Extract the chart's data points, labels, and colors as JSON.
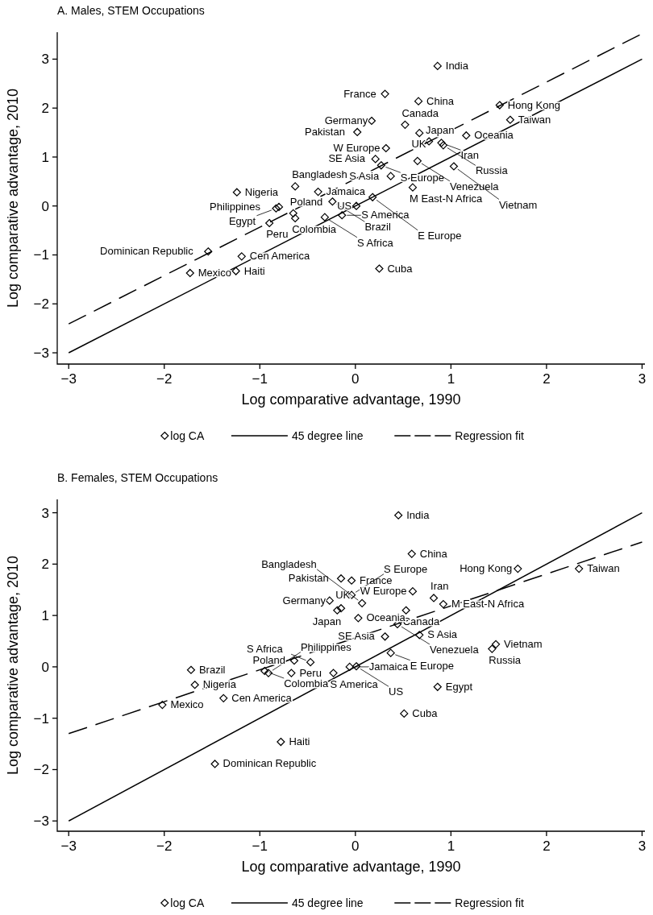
{
  "chart_data": [
    {
      "type": "scatter",
      "title": "A. Males, STEM Occupations",
      "xlabel": "Log comparative advantage, 1990",
      "ylabel": "Log comparative advantage, 2010",
      "xlim": [
        -3.12,
        3.03
      ],
      "ylim": [
        -3.23,
        3.55
      ],
      "xticks": [
        -3,
        -2,
        -1,
        0,
        1,
        2,
        3
      ],
      "yticks": [
        -3,
        -2,
        -1,
        0,
        1,
        2,
        3
      ],
      "legend": "bottom",
      "series": [
        {
          "name": "log CA",
          "type": "scatter",
          "marker": "diamond",
          "color": "#000000",
          "x": [
            -1.24,
            -0.63,
            -0.39,
            -0.8,
            -0.83,
            -0.65,
            -0.63,
            -0.9,
            -0.24,
            -0.32,
            -0.14,
            -1.54,
            -1.19,
            -1.25,
            -1.73,
            0.86,
            0.31,
            0.66,
            1.51,
            1.62,
            0.17,
            0.52,
            0.02,
            0.67,
            1.16,
            0.77,
            0.9,
            0.92,
            0.32,
            0.21,
            0.27,
            0.65,
            1.03,
            0.37,
            0.6,
            0.18,
            0.01,
            0.25
          ],
          "values": [
            0.28,
            0.4,
            0.29,
            -0.02,
            -0.05,
            -0.15,
            -0.25,
            -0.35,
            0.09,
            -0.23,
            -0.19,
            -0.93,
            -1.03,
            -1.33,
            -1.37,
            2.86,
            2.29,
            2.14,
            2.06,
            1.76,
            1.74,
            1.66,
            1.51,
            1.49,
            1.44,
            1.32,
            1.29,
            1.24,
            1.18,
            0.96,
            0.83,
            0.92,
            0.81,
            0.61,
            0.38,
            0.18,
            0.0,
            -1.28
          ]
        },
        {
          "name": "45 degree line",
          "type": "line",
          "line_style": "solid",
          "color": "#000000",
          "x": [
            -3,
            3
          ],
          "values": [
            -3,
            3
          ]
        },
        {
          "name": "Regression fit",
          "type": "line",
          "line_style": "dashed",
          "color": "#000000",
          "x": [
            -3,
            3
          ],
          "values": [
            -2.41,
            3.52
          ]
        }
      ],
      "annotations": [
        {
          "text": "Nigeria",
          "x": -1.24,
          "y": 0.28
        },
        {
          "text": "Bangladesh",
          "x": -0.63,
          "y": 0.4
        },
        {
          "text": "Jamaica",
          "x": -0.39,
          "y": 0.29
        },
        {
          "text": "Philippines",
          "x": -0.8,
          "y": -0.02
        },
        {
          "text": "Egypt",
          "x": -0.83,
          "y": -0.05
        },
        {
          "text": "Poland",
          "x": -0.65,
          "y": -0.15
        },
        {
          "text": "Colombia",
          "x": -0.63,
          "y": -0.25
        },
        {
          "text": "Peru",
          "x": -0.9,
          "y": -0.35
        },
        {
          "text": "Brazil",
          "x": -0.24,
          "y": 0.09
        },
        {
          "text": "S Africa",
          "x": -0.32,
          "y": -0.23
        },
        {
          "text": "S America",
          "x": -0.14,
          "y": -0.19
        },
        {
          "text": "Dominican Republic",
          "x": -1.54,
          "y": -0.93
        },
        {
          "text": "Cen America",
          "x": -1.19,
          "y": -1.03
        },
        {
          "text": "Haiti",
          "x": -1.25,
          "y": -1.33
        },
        {
          "text": "Mexico",
          "x": -1.73,
          "y": -1.37
        },
        {
          "text": "India",
          "x": 0.86,
          "y": 2.86
        },
        {
          "text": "France",
          "x": 0.31,
          "y": 2.29
        },
        {
          "text": "China",
          "x": 0.66,
          "y": 2.14
        },
        {
          "text": "Hong Kong",
          "x": 1.51,
          "y": 2.06
        },
        {
          "text": "Taiwan",
          "x": 1.62,
          "y": 1.76
        },
        {
          "text": "Germany",
          "x": 0.17,
          "y": 1.74
        },
        {
          "text": "Canada",
          "x": 0.52,
          "y": 1.66
        },
        {
          "text": "Pakistan",
          "x": 0.02,
          "y": 1.51
        },
        {
          "text": "UK",
          "x": 0.67,
          "y": 1.49
        },
        {
          "text": "Oceania",
          "x": 1.16,
          "y": 1.44
        },
        {
          "text": "Japan",
          "x": 0.77,
          "y": 1.32
        },
        {
          "text": "Iran",
          "x": 0.9,
          "y": 1.29
        },
        {
          "text": "Russia",
          "x": 0.92,
          "y": 1.24
        },
        {
          "text": "W Europe",
          "x": 0.32,
          "y": 1.18
        },
        {
          "text": "SE Asia",
          "x": 0.21,
          "y": 0.96
        },
        {
          "text": "S Europe",
          "x": 0.27,
          "y": 0.83
        },
        {
          "text": "Venezuela",
          "x": 0.65,
          "y": 0.92
        },
        {
          "text": "Vietnam",
          "x": 1.03,
          "y": 0.81
        },
        {
          "text": "S Asia",
          "x": 0.37,
          "y": 0.61
        },
        {
          "text": "M East-N Africa",
          "x": 0.6,
          "y": 0.38
        },
        {
          "text": "E Europe",
          "x": 0.18,
          "y": 0.18
        },
        {
          "text": "US",
          "x": 0.01,
          "y": 0.0
        },
        {
          "text": "Cuba",
          "x": 0.25,
          "y": -1.28
        }
      ]
    },
    {
      "type": "scatter",
      "title": "B. Females, STEM Occupations",
      "xlabel": "Log comparative advantage, 1990",
      "ylabel": "Log comparative advantage, 2010",
      "xlim": [
        -3.12,
        3.03
      ],
      "ylim": [
        -3.2,
        3.26
      ],
      "xticks": [
        -3,
        -2,
        -1,
        0,
        1,
        2,
        3
      ],
      "yticks": [
        -3,
        -2,
        -1,
        0,
        1,
        2,
        3
      ],
      "legend": "bottom",
      "series": [
        {
          "name": "log CA",
          "type": "scatter",
          "marker": "diamond",
          "color": "#000000",
          "x": [
            -0.15,
            -0.04,
            -0.27,
            -0.19,
            -0.15,
            -0.04,
            -1.72,
            -1.68,
            -2.02,
            -0.95,
            -0.91,
            -0.64,
            -0.47,
            -0.67,
            -1.38,
            -0.78,
            -1.47,
            -0.23,
            -0.06,
            0.01,
            0.45,
            0.59,
            1.7,
            2.34,
            0.6,
            0.82,
            0.92,
            0.07,
            0.53,
            0.03,
            0.44,
            0.67,
            0.31,
            0.37,
            1.47,
            1.43,
            0.86,
            0.51
          ],
          "values": [
            1.72,
            1.68,
            1.29,
            1.1,
            1.14,
            1.4,
            -0.06,
            -0.35,
            -0.74,
            -0.08,
            -0.12,
            0.12,
            0.09,
            -0.12,
            -0.61,
            -1.46,
            -1.89,
            -0.12,
            0.0,
            0.01,
            2.95,
            2.2,
            1.91,
            1.91,
            1.47,
            1.34,
            1.22,
            1.24,
            1.1,
            0.95,
            0.83,
            0.62,
            0.59,
            0.27,
            0.44,
            0.35,
            -0.39,
            -0.91
          ]
        },
        {
          "name": "45 degree line",
          "type": "line",
          "line_style": "solid",
          "color": "#000000",
          "x": [
            -3,
            3
          ],
          "values": [
            -3,
            3
          ]
        },
        {
          "name": "Regression fit",
          "type": "line",
          "line_style": "dashed",
          "color": "#000000",
          "x": [
            -3,
            3
          ],
          "values": [
            -1.3,
            2.43
          ]
        }
      ],
      "annotations": [
        {
          "text": "Pakistan",
          "x": -0.15,
          "y": 1.72
        },
        {
          "text": "France",
          "x": -0.04,
          "y": 1.68
        },
        {
          "text": "Germany",
          "x": -0.27,
          "y": 1.29
        },
        {
          "text": "Japan",
          "x": -0.19,
          "y": 1.1
        },
        {
          "text": "UK",
          "x": -0.15,
          "y": 1.14
        },
        {
          "text": "S Europe",
          "x": -0.04,
          "y": 1.4
        },
        {
          "text": "Brazil",
          "x": -1.72,
          "y": -0.06
        },
        {
          "text": "Nigeria",
          "x": -1.68,
          "y": -0.35
        },
        {
          "text": "Mexico",
          "x": -2.02,
          "y": -0.74
        },
        {
          "text": "Colombia",
          "x": -0.95,
          "y": -0.08
        },
        {
          "text": "Philippines",
          "x": -0.91,
          "y": -0.12
        },
        {
          "text": "Poland",
          "x": -0.64,
          "y": 0.12
        },
        {
          "text": "S Africa",
          "x": -0.47,
          "y": 0.09
        },
        {
          "text": "Peru",
          "x": -0.67,
          "y": -0.12
        },
        {
          "text": "Cen America",
          "x": -1.38,
          "y": -0.61
        },
        {
          "text": "Haiti",
          "x": -0.78,
          "y": -1.46
        },
        {
          "text": "Dominican Republic",
          "x": -1.47,
          "y": -1.89
        },
        {
          "text": "S America",
          "x": -0.23,
          "y": -0.12
        },
        {
          "text": "Jamaica",
          "x": -0.06,
          "y": 0.0
        },
        {
          "text": "US",
          "x": 0.01,
          "y": 0.01
        },
        {
          "text": "India",
          "x": 0.45,
          "y": 2.95
        },
        {
          "text": "China",
          "x": 0.59,
          "y": 2.2
        },
        {
          "text": "Hong Kong",
          "x": 1.7,
          "y": 1.91
        },
        {
          "text": "Taiwan",
          "x": 2.34,
          "y": 1.91
        },
        {
          "text": "W Europe",
          "x": 0.6,
          "y": 1.47
        },
        {
          "text": "Iran",
          "x": 0.82,
          "y": 1.34
        },
        {
          "text": "M East-N Africa",
          "x": 0.92,
          "y": 1.22
        },
        {
          "text": "Bangladesh",
          "x": 0.07,
          "y": 1.24
        },
        {
          "text": "Canada",
          "x": 0.53,
          "y": 1.1
        },
        {
          "text": "Oceania",
          "x": 0.03,
          "y": 0.95
        },
        {
          "text": "Venezuela",
          "x": 0.44,
          "y": 0.83
        },
        {
          "text": "S Asia",
          "x": 0.67,
          "y": 0.62
        },
        {
          "text": "SE Asia",
          "x": 0.31,
          "y": 0.59
        },
        {
          "text": "E Europe",
          "x": 0.37,
          "y": 0.27
        },
        {
          "text": "Vietnam",
          "x": 1.47,
          "y": 0.44
        },
        {
          "text": "Russia",
          "x": 1.43,
          "y": 0.35
        },
        {
          "text": "Egypt",
          "x": 0.86,
          "y": -0.39
        },
        {
          "text": "Cuba",
          "x": 0.51,
          "y": -0.91
        }
      ]
    }
  ]
}
